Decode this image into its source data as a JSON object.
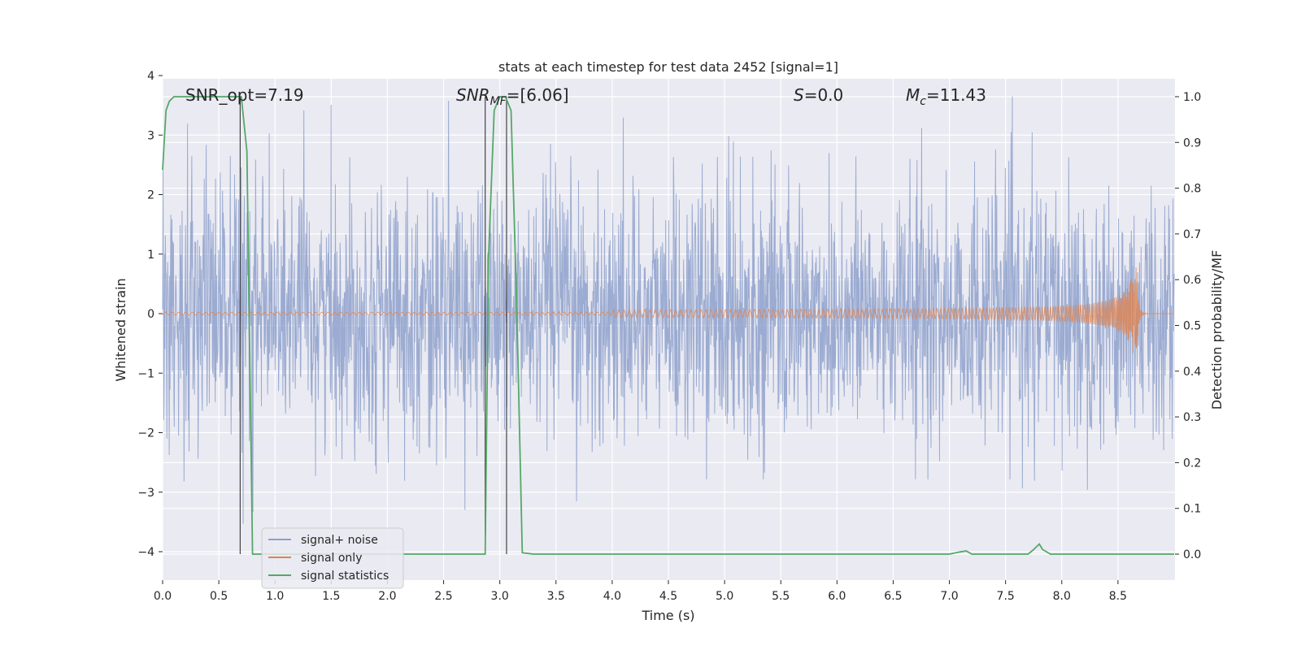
{
  "chart_data": {
    "type": "line",
    "title": "stats at each timestep for test data 2452 [signal=1]",
    "xlabel": "Time (s)",
    "ylabel": "Whitened strain",
    "ylabel_right": "Detection probability/MF",
    "xlim": [
      0.0,
      9.0
    ],
    "ylim": [
      -4.35,
      4.0
    ],
    "ylim_right": [
      -0.05,
      1.05
    ],
    "x_ticks": [
      "0.0",
      "0.5",
      "1.0",
      "1.5",
      "2.0",
      "2.5",
      "3.0",
      "3.5",
      "4.0",
      "4.5",
      "5.0",
      "5.5",
      "6.0",
      "6.5",
      "7.0",
      "7.5",
      "8.0",
      "8.5"
    ],
    "y_ticks": [
      "4",
      "3",
      "2",
      "1",
      "0",
      "−1",
      "−2",
      "−3",
      "−4"
    ],
    "y_right_ticks": [
      "1.0",
      "0.9",
      "0.8",
      "0.7",
      "0.6",
      "0.5",
      "0.4",
      "0.3",
      "0.2",
      "0.1",
      "0.0"
    ],
    "annotations": {
      "snr_opt": "SNR_opt=7.19",
      "snr_mf_base": "SNR",
      "snr_mf_sub": "MF",
      "snr_mf_val": "=[6.06]",
      "s_var": "S",
      "s_val": "=0.0",
      "mc_base": "M",
      "mc_sub": "c",
      "mc_val": "=11.43"
    },
    "legend": {
      "placement": "lower-left",
      "items": [
        {
          "label": "signal+ noise",
          "color": "#8da0cb"
        },
        {
          "label": "signal only",
          "color": "#dd8452"
        },
        {
          "label": "signal statistics",
          "color": "#55a868"
        }
      ]
    },
    "vlines": [
      0.69,
      2.87,
      3.06
    ],
    "series": [
      {
        "name": "signal+ noise",
        "axis": "left",
        "color": "#8da0cb",
        "description": "dense whitened-noise trace, typical range about -2.5 to 2.5 with spikes to about +3.6 and -4.0"
      },
      {
        "name": "signal only",
        "axis": "left",
        "color": "#dd8452",
        "description": "chirp: flat near 0 until ~5.5 s, slowly growing oscillation, peaking near 8.65 s at about +0.95 / -1.3, then ringdown to 0"
      },
      {
        "name": "signal statistics",
        "axis": "right",
        "color": "#55a868",
        "x": [
          0.0,
          0.03,
          0.06,
          0.1,
          0.2,
          0.3,
          0.4,
          0.5,
          0.6,
          0.65,
          0.7,
          0.75,
          0.8,
          0.85,
          1.0,
          1.5,
          2.0,
          2.5,
          2.87,
          2.9,
          2.95,
          3.0,
          3.05,
          3.1,
          3.15,
          3.2,
          3.3,
          4.0,
          5.0,
          6.0,
          7.0,
          7.1,
          7.15,
          7.2,
          7.5,
          7.7,
          7.75,
          7.8,
          7.83,
          7.9,
          8.0,
          8.5,
          9.0
        ],
        "y": [
          0.84,
          0.97,
          0.99,
          1.0,
          1.0,
          1.0,
          1.0,
          1.0,
          1.0,
          1.0,
          1.0,
          0.88,
          0.0,
          0.0,
          0.0,
          0.0,
          0.0,
          0.0,
          0.0,
          0.65,
          0.97,
          1.0,
          1.0,
          0.97,
          0.55,
          0.003,
          0.0,
          0.0,
          0.0,
          0.0,
          0.0,
          0.005,
          0.007,
          0.0,
          0.0,
          0.0,
          0.01,
          0.022,
          0.01,
          0.0,
          0.0,
          0.0,
          0.0
        ]
      }
    ],
    "grid": true,
    "colors": {
      "plot_background": "#eaeaf2",
      "grid": "#ffffff",
      "vline": "#444444",
      "text": "#262626"
    }
  }
}
